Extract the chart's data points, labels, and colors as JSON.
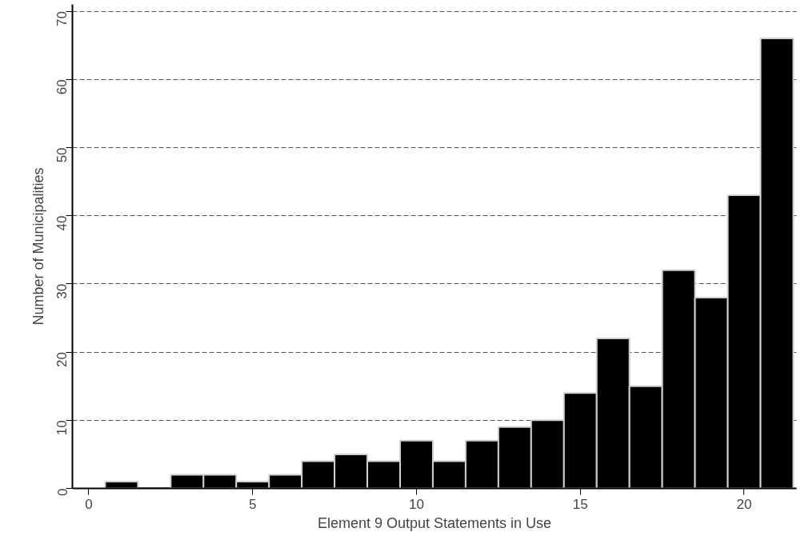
{
  "chart_data": {
    "type": "histogram",
    "xlabel": "Element 9 Output Statements in Use",
    "ylabel": "Number of Municipalities",
    "bins": [
      0.5,
      1.5,
      2.5,
      3.5,
      4.5,
      5.5,
      6.5,
      7.5,
      8.5,
      9.5,
      10.5,
      11.5,
      12.5,
      13.5,
      14.5,
      15.5,
      16.5,
      17.5,
      18.5,
      19.5,
      20.5,
      21.5
    ],
    "values": [
      1,
      0,
      2,
      2,
      1,
      2,
      4,
      5,
      4,
      7,
      4,
      7,
      9,
      10,
      14,
      22,
      15,
      32,
      28,
      43,
      66
    ],
    "color": "#000000",
    "xlim": [
      -0.5,
      21.6
    ],
    "xticks": [
      0,
      5,
      10,
      15,
      20
    ],
    "ylim": [
      0,
      71
    ],
    "yticks": [
      0,
      10,
      20,
      30,
      40,
      50,
      60,
      70
    ],
    "grid": "y",
    "line_style": "dashed"
  }
}
